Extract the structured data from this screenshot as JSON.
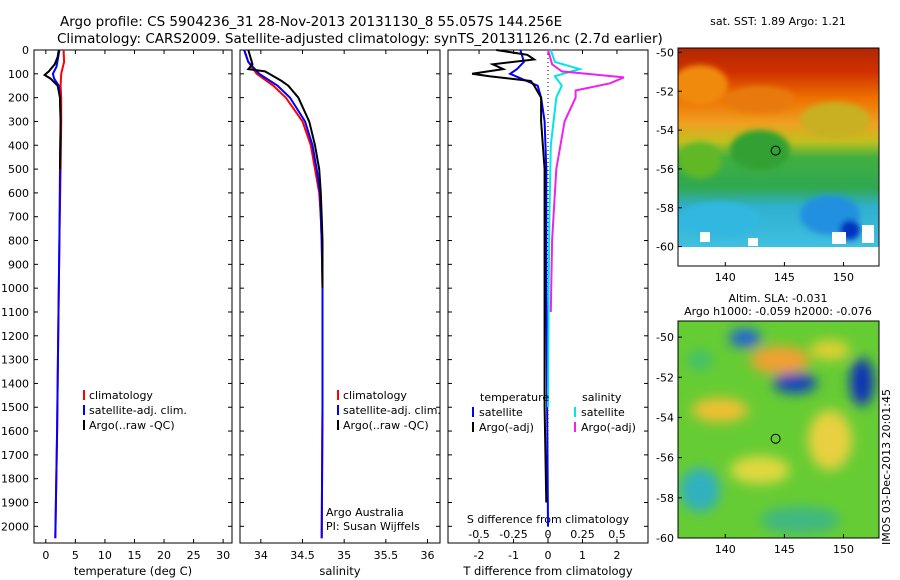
{
  "title_line1": "Argo profile: CS 5904236_31 28-Nov-2013 20131130_8 55.057S 144.256E",
  "title_line2": "Climatology: CARS2009. Satellite-adjusted climatology: synTS_20131126.nc (2.7d earlier)",
  "side_stamp": "IMOS 03-Dec-2013 20:01:45",
  "colors": {
    "climatology": "#ff0000",
    "satellite": "#0000ff",
    "argo": "#000000",
    "sal_satellite": "#00e5e5",
    "sal_argo": "#ee22ee"
  },
  "chart_data": [
    {
      "type": "line",
      "id": "temperature",
      "xlabel": "temperature (deg C)",
      "ylabel": "",
      "xlim": [
        -2,
        31.5
      ],
      "ylim": [
        2070,
        0
      ],
      "xticks": [
        0,
        5,
        10,
        15,
        20,
        25,
        30
      ],
      "yticks": [
        0,
        100,
        200,
        300,
        400,
        500,
        600,
        700,
        800,
        900,
        1000,
        1100,
        1200,
        1300,
        1400,
        1500,
        1600,
        1700,
        1800,
        1900,
        2000
      ],
      "legend": [
        "climatology",
        "satellite-adj. clim.",
        "Argo(..raw -QC)"
      ],
      "series": [
        {
          "name": "climatology",
          "color": "#ff0000",
          "depth": [
            0,
            50,
            100,
            150,
            200,
            300,
            500,
            800,
            1200,
            1600,
            2050
          ],
          "values": [
            3.0,
            3.1,
            2.6,
            2.5,
            2.6,
            2.6,
            2.5,
            2.3,
            2.1,
            1.9,
            1.6
          ]
        },
        {
          "name": "satellite-adj. clim.",
          "color": "#0000ff",
          "depth": [
            0,
            30,
            70,
            100,
            120,
            150,
            200,
            300,
            500,
            800,
            1200,
            1600,
            2050
          ],
          "values": [
            2.3,
            2.1,
            1.8,
            1.2,
            1.4,
            2.2,
            2.4,
            2.5,
            2.4,
            2.3,
            2.1,
            1.9,
            1.6
          ]
        },
        {
          "name": "Argo(..raw -QC)",
          "color": "#000000",
          "depth": [
            0,
            30,
            60,
            90,
            105,
            120,
            150,
            200,
            300,
            500
          ],
          "values": [
            2.2,
            2.0,
            1.5,
            0.5,
            -0.2,
            0.8,
            2.0,
            2.4,
            2.5,
            2.4
          ]
        }
      ]
    },
    {
      "type": "line",
      "id": "salinity",
      "xlabel": "salinity",
      "xlim": [
        33.75,
        36.15
      ],
      "ylim": [
        2070,
        0
      ],
      "xticks": [
        34,
        34.5,
        35,
        35.5,
        36
      ],
      "legend": [
        "climatology",
        "satellite-adj. clim.",
        "Argo(..raw -QC)"
      ],
      "annotation": [
        "Argo Australia",
        "PI: Susan Wijffels"
      ],
      "series": [
        {
          "name": "climatology",
          "color": "#ff0000",
          "depth": [
            0,
            50,
            100,
            150,
            200,
            300,
            400,
            500,
            600,
            700,
            800,
            1000,
            1500,
            2050
          ],
          "values": [
            33.8,
            33.85,
            33.95,
            34.15,
            34.3,
            34.5,
            34.6,
            34.65,
            34.7,
            34.72,
            34.73,
            34.74,
            34.74,
            34.73
          ]
        },
        {
          "name": "satellite-adj. clim.",
          "color": "#0000ff",
          "depth": [
            0,
            50,
            100,
            150,
            200,
            300,
            400,
            500,
            600,
            700,
            800,
            1000,
            1500,
            2050
          ],
          "values": [
            33.8,
            33.85,
            33.98,
            34.2,
            34.35,
            34.53,
            34.62,
            34.67,
            34.71,
            34.72,
            34.73,
            34.74,
            34.74,
            34.73
          ]
        },
        {
          "name": "Argo(..raw -QC)",
          "color": "#000000",
          "depth": [
            0,
            60,
            80,
            90,
            100,
            130,
            150,
            200,
            300,
            400,
            500,
            600,
            700,
            800,
            1000
          ],
          "values": [
            33.85,
            33.9,
            33.85,
            34.05,
            34.1,
            34.25,
            34.33,
            34.45,
            34.58,
            34.65,
            34.7,
            34.72,
            34.73,
            34.74,
            34.74
          ]
        }
      ]
    },
    {
      "type": "line",
      "id": "difference",
      "xlabel": "T difference from climatology",
      "xlabel_top": "S difference from climatology",
      "xlim": [
        -2.9,
        2.9
      ],
      "ylim": [
        2070,
        0
      ],
      "xticks": [
        -2,
        -1,
        0,
        1,
        2
      ],
      "xticks_top": [
        -0.5,
        -0.25,
        0,
        0.25,
        0.5
      ],
      "legend_left_title": "temperature",
      "legend_left": [
        "satellite",
        "Argo(-adj)"
      ],
      "legend_right_title": "salinity",
      "legend_right": [
        "satellite",
        "Argo(-adj)"
      ],
      "series": [
        {
          "name": "T satellite",
          "color": "#0000ff",
          "depth": [
            0,
            50,
            80,
            100,
            150,
            200,
            300,
            500,
            1000,
            2000
          ],
          "values": [
            -0.8,
            -0.7,
            -0.9,
            -1.1,
            -0.3,
            -0.2,
            -0.1,
            -0.05,
            -0.05,
            0
          ]
        },
        {
          "name": "T Argo(-adj)",
          "color": "#000000",
          "depth": [
            0,
            20,
            40,
            60,
            80,
            100,
            110,
            130,
            150,
            200,
            300,
            500,
            1000,
            1500,
            1900
          ],
          "values": [
            -1.5,
            -0.6,
            -0.4,
            -1.6,
            -1.3,
            -2.2,
            -1.7,
            -0.5,
            -0.4,
            -0.2,
            -0.2,
            -0.1,
            -0.1,
            -0.1,
            -0.05
          ]
        },
        {
          "name": "S satellite",
          "color": "#00e5e5",
          "depth": [
            0,
            50,
            80,
            110,
            150,
            200,
            400,
            700,
            1000,
            1500
          ],
          "values": [
            0.02,
            0.05,
            0.23,
            0.05,
            0.1,
            0.06,
            0.02,
            0.01,
            0.005,
            0
          ]
        },
        {
          "name": "S Argo(-adj)",
          "color": "#ee22ee",
          "depth": [
            0,
            40,
            60,
            90,
            115,
            140,
            170,
            200,
            300,
            500,
            800,
            1100
          ],
          "values": [
            0.0,
            0.02,
            0.03,
            0.1,
            0.55,
            0.45,
            0.2,
            0.2,
            0.12,
            0.06,
            0.03,
            0.02
          ]
        }
      ]
    },
    {
      "type": "heatmap",
      "id": "sst_map",
      "title": "sat. SST: 1.89 Argo: 1.21",
      "xlim": [
        136,
        153
      ],
      "ylim": [
        -61,
        -49
      ],
      "xticks": [
        140,
        145,
        150
      ],
      "yticks": [
        -50,
        -52,
        -54,
        -56,
        -58,
        -60
      ],
      "argo_position": {
        "lon": 144.256,
        "lat": -55.057
      }
    },
    {
      "type": "heatmap",
      "id": "sla_map",
      "title": "Altim. SLA: -0.031",
      "subtitle": "Argo h1000: -0.059 h2000: -0.076",
      "xlim": [
        136,
        153
      ],
      "ylim": [
        -60,
        -49
      ],
      "xticks": [
        140,
        145,
        150
      ],
      "yticks": [
        -50,
        -52,
        -54,
        -56,
        -58,
        -60
      ],
      "argo_position": {
        "lon": 144.256,
        "lat": -55.057
      }
    }
  ]
}
